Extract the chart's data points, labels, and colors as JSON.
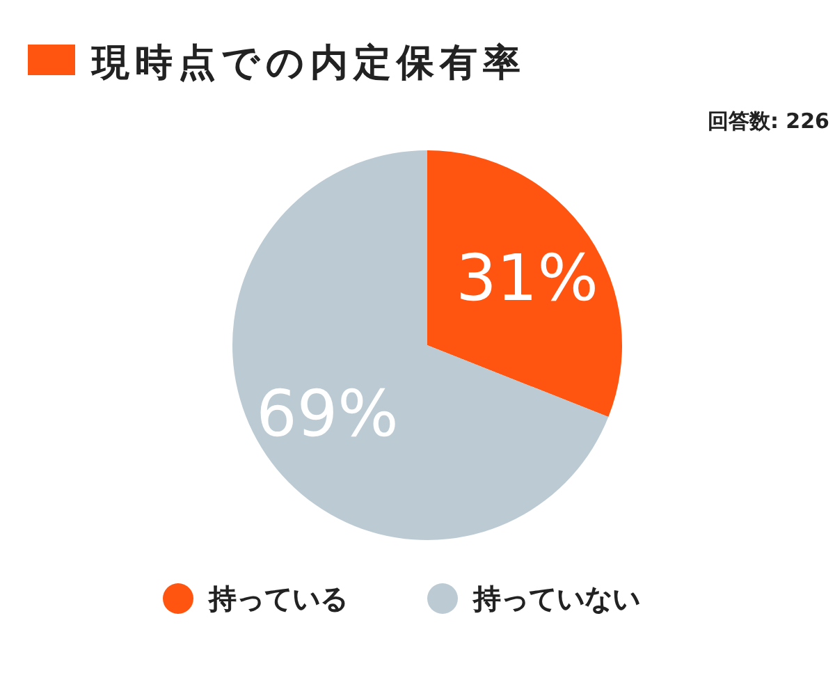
{
  "chart_data": {
    "type": "pie",
    "title": "現時点での内定保有率",
    "annotations": [
      "回答数: 226"
    ],
    "categories": [
      "持っている",
      "持っていない"
    ],
    "values": [
      31,
      69
    ],
    "colors": [
      "#ff5511",
      "#bccbd3"
    ],
    "value_labels": [
      "31%",
      "69%"
    ],
    "legend": "bottom"
  }
}
